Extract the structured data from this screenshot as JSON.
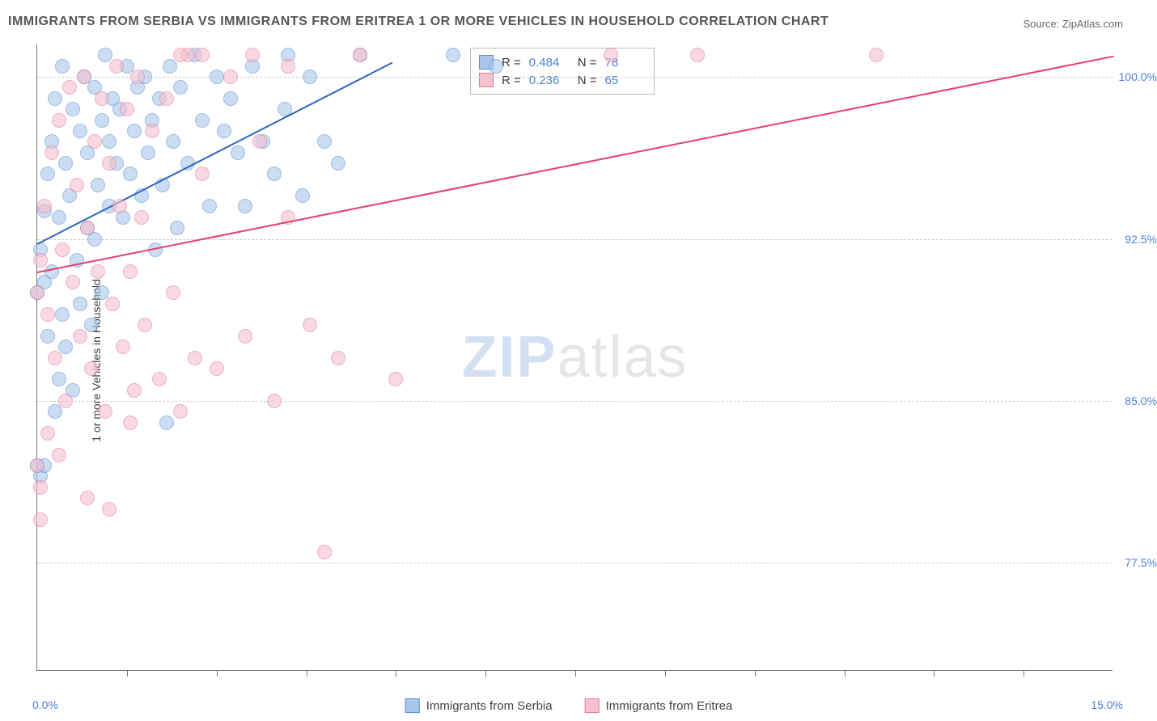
{
  "title": "IMMIGRANTS FROM SERBIA VS IMMIGRANTS FROM ERITREA 1 OR MORE VEHICLES IN HOUSEHOLD CORRELATION CHART",
  "source": "Source: ZipAtlas.com",
  "watermark_zip": "ZIP",
  "watermark_atlas": "atlas",
  "y_axis_label": "1 or more Vehicles in Household",
  "x_axis": {
    "min_label": "0.0%",
    "max_label": "15.0%",
    "min": 0,
    "max": 15,
    "tick_positions": [
      1.25,
      2.5,
      3.75,
      5.0,
      6.25,
      7.5,
      8.75,
      10.0,
      11.25,
      12.5,
      13.75
    ]
  },
  "y_axis": {
    "min": 72.5,
    "max": 101.5,
    "gridlines": [
      77.5,
      85.0,
      92.5,
      100.0
    ],
    "labels": [
      "77.5%",
      "85.0%",
      "92.5%",
      "100.0%"
    ]
  },
  "colors": {
    "serbia_fill": "#a8c7eb",
    "serbia_stroke": "#5b8fd6",
    "serbia_line": "#2d64c0",
    "eritrea_fill": "#f4c1ce",
    "eritrea_stroke": "#e87a9a",
    "eritrea_line": "#e83e6c",
    "grid": "#cccccc",
    "axis": "#777777",
    "tick_text": "#4a7fd8",
    "title_text": "#555555",
    "label_text": "#444444"
  },
  "point_radius": 9,
  "point_opacity": 0.6,
  "series": [
    {
      "name": "Immigrants from Serbia",
      "color_key": "serbia",
      "R": "0.484",
      "N": "78",
      "trend": {
        "x1": 0,
        "y1": 92.3,
        "x2": 4.95,
        "y2": 100.7
      },
      "points": [
        [
          0.05,
          92.0
        ],
        [
          0.1,
          90.5
        ],
        [
          0.1,
          93.8
        ],
        [
          0.15,
          88.0
        ],
        [
          0.15,
          95.5
        ],
        [
          0.2,
          97.0
        ],
        [
          0.2,
          91.0
        ],
        [
          0.25,
          84.5
        ],
        [
          0.25,
          99.0
        ],
        [
          0.3,
          86.0
        ],
        [
          0.3,
          93.5
        ],
        [
          0.35,
          89.0
        ],
        [
          0.35,
          100.5
        ],
        [
          0.4,
          96.0
        ],
        [
          0.4,
          87.5
        ],
        [
          0.45,
          94.5
        ],
        [
          0.5,
          98.5
        ],
        [
          0.5,
          85.5
        ],
        [
          0.55,
          91.5
        ],
        [
          0.6,
          97.5
        ],
        [
          0.6,
          89.5
        ],
        [
          0.65,
          100.0
        ],
        [
          0.7,
          93.0
        ],
        [
          0.7,
          96.5
        ],
        [
          0.75,
          88.5
        ],
        [
          0.8,
          99.5
        ],
        [
          0.8,
          92.5
        ],
        [
          0.85,
          95.0
        ],
        [
          0.9,
          98.0
        ],
        [
          0.9,
          90.0
        ],
        [
          0.95,
          101.0
        ],
        [
          1.0,
          94.0
        ],
        [
          1.0,
          97.0
        ],
        [
          1.05,
          99.0
        ],
        [
          1.1,
          96.0
        ],
        [
          1.15,
          98.5
        ],
        [
          1.2,
          93.5
        ],
        [
          1.25,
          100.5
        ],
        [
          1.3,
          95.5
        ],
        [
          1.35,
          97.5
        ],
        [
          1.4,
          99.5
        ],
        [
          1.45,
          94.5
        ],
        [
          1.5,
          100.0
        ],
        [
          1.55,
          96.5
        ],
        [
          1.6,
          98.0
        ],
        [
          1.65,
          92.0
        ],
        [
          1.7,
          99.0
        ],
        [
          1.75,
          95.0
        ],
        [
          1.8,
          84.0
        ],
        [
          1.85,
          100.5
        ],
        [
          1.9,
          97.0
        ],
        [
          1.95,
          93.0
        ],
        [
          2.0,
          99.5
        ],
        [
          2.1,
          96.0
        ],
        [
          2.2,
          101.0
        ],
        [
          2.3,
          98.0
        ],
        [
          2.4,
          94.0
        ],
        [
          2.5,
          100.0
        ],
        [
          2.6,
          97.5
        ],
        [
          2.7,
          99.0
        ],
        [
          2.8,
          96.5
        ],
        [
          2.9,
          94.0
        ],
        [
          3.0,
          100.5
        ],
        [
          3.15,
          97.0
        ],
        [
          3.3,
          95.5
        ],
        [
          3.45,
          98.5
        ],
        [
          3.5,
          101.0
        ],
        [
          3.7,
          94.5
        ],
        [
          3.8,
          100.0
        ],
        [
          4.0,
          97.0
        ],
        [
          4.2,
          96.0
        ],
        [
          4.5,
          101.0
        ],
        [
          0.0,
          82.0
        ],
        [
          0.05,
          81.5
        ],
        [
          0.0,
          90.0
        ],
        [
          5.8,
          101.0
        ],
        [
          6.4,
          100.5
        ],
        [
          0.1,
          82.0
        ]
      ]
    },
    {
      "name": "Immigrants from Eritrea",
      "color_key": "eritrea",
      "R": "0.236",
      "N": "65",
      "trend": {
        "x1": 0,
        "y1": 91.0,
        "x2": 15.0,
        "y2": 101.0
      },
      "points": [
        [
          0.05,
          91.5
        ],
        [
          0.1,
          94.0
        ],
        [
          0.15,
          89.0
        ],
        [
          0.2,
          96.5
        ],
        [
          0.25,
          87.0
        ],
        [
          0.3,
          98.0
        ],
        [
          0.35,
          92.0
        ],
        [
          0.4,
          85.0
        ],
        [
          0.45,
          99.5
        ],
        [
          0.5,
          90.5
        ],
        [
          0.55,
          95.0
        ],
        [
          0.6,
          88.0
        ],
        [
          0.65,
          100.0
        ],
        [
          0.7,
          93.0
        ],
        [
          0.75,
          86.5
        ],
        [
          0.8,
          97.0
        ],
        [
          0.85,
          91.0
        ],
        [
          0.9,
          99.0
        ],
        [
          0.95,
          84.5
        ],
        [
          1.0,
          96.0
        ],
        [
          1.05,
          89.5
        ],
        [
          1.1,
          100.5
        ],
        [
          1.15,
          94.0
        ],
        [
          1.2,
          87.5
        ],
        [
          1.25,
          98.5
        ],
        [
          1.3,
          91.0
        ],
        [
          1.35,
          85.5
        ],
        [
          1.4,
          100.0
        ],
        [
          1.45,
          93.5
        ],
        [
          1.5,
          88.5
        ],
        [
          1.6,
          97.5
        ],
        [
          1.7,
          86.0
        ],
        [
          1.8,
          99.0
        ],
        [
          1.9,
          90.0
        ],
        [
          2.0,
          84.5
        ],
        [
          2.1,
          101.0
        ],
        [
          2.2,
          87.0
        ],
        [
          2.3,
          95.5
        ],
        [
          2.5,
          86.5
        ],
        [
          2.7,
          100.0
        ],
        [
          2.9,
          88.0
        ],
        [
          3.1,
          97.0
        ],
        [
          3.3,
          85.0
        ],
        [
          3.5,
          93.5
        ],
        [
          3.5,
          100.5
        ],
        [
          3.8,
          88.5
        ],
        [
          4.0,
          78.0
        ],
        [
          4.2,
          87.0
        ],
        [
          4.5,
          101.0
        ],
        [
          5.0,
          86.0
        ],
        [
          0.0,
          82.0
        ],
        [
          0.7,
          80.5
        ],
        [
          1.0,
          80.0
        ],
        [
          1.3,
          84.0
        ],
        [
          0.3,
          82.5
        ],
        [
          8.0,
          101.0
        ],
        [
          9.2,
          101.0
        ],
        [
          11.7,
          101.0
        ],
        [
          0.05,
          81.0
        ],
        [
          0.0,
          90.0
        ],
        [
          0.15,
          83.5
        ],
        [
          2.0,
          101.0
        ],
        [
          2.3,
          101.0
        ],
        [
          3.0,
          101.0
        ],
        [
          0.05,
          79.5
        ]
      ]
    }
  ],
  "bottom_legend": [
    {
      "label": "Immigrants from Serbia",
      "color_key": "serbia"
    },
    {
      "label": "Immigrants from Eritrea",
      "color_key": "eritrea"
    }
  ]
}
